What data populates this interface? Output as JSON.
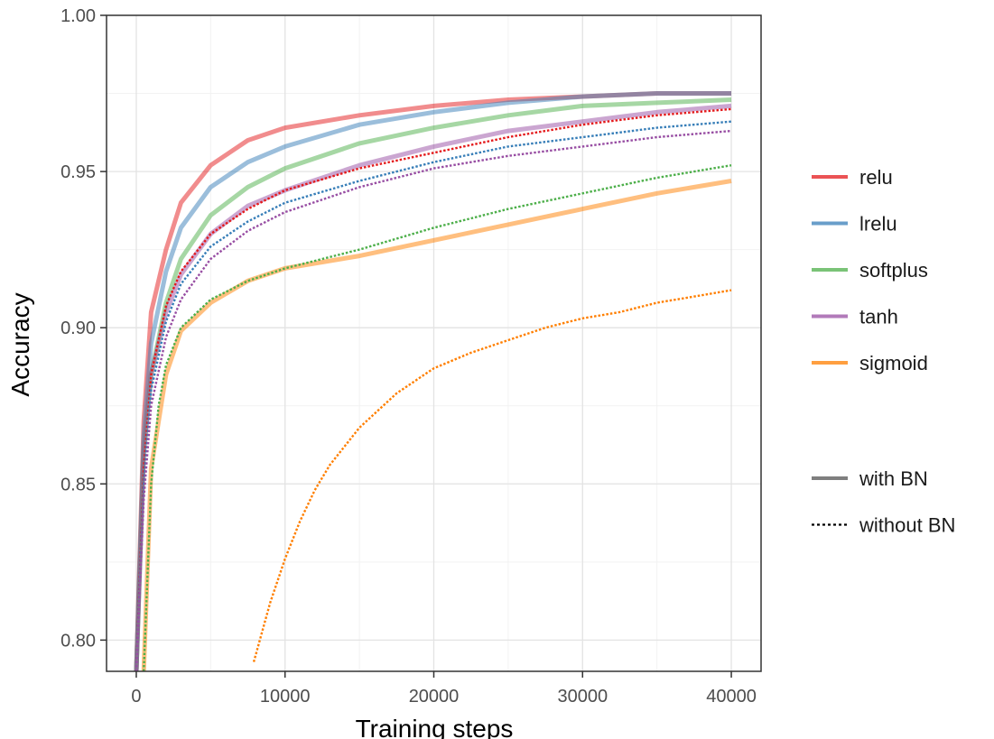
{
  "chart_data": {
    "type": "line",
    "xlabel": "Training steps",
    "ylabel": "Accuracy",
    "xlim": [
      -2000,
      42000
    ],
    "ylim": [
      0.79,
      1.0
    ],
    "xticks": [
      0,
      10000,
      20000,
      30000,
      40000
    ],
    "xtick_labels": [
      "0",
      "10000",
      "20000",
      "30000",
      "40000"
    ],
    "yticks": [
      0.8,
      0.85,
      0.9,
      0.95,
      1.0
    ],
    "ytick_labels": [
      "0.80",
      "0.85",
      "0.90",
      "0.95",
      "1.00"
    ],
    "grid": true,
    "legend_position": "right",
    "legend": {
      "activations": [
        {
          "name": "relu",
          "color": "#e41a1c"
        },
        {
          "name": "lrelu",
          "color": "#377eb8"
        },
        {
          "name": "softplus",
          "color": "#4daf4a"
        },
        {
          "name": "tanh",
          "color": "#984ea3"
        },
        {
          "name": "sigmoid",
          "color": "#ff7f00"
        }
      ],
      "styles": [
        {
          "name": "with BN",
          "dash": "solid",
          "color": "#7f7f7f"
        },
        {
          "name": "without BN",
          "dash": "dotted",
          "color": "#000000"
        }
      ]
    },
    "series": [
      {
        "name": "relu",
        "bn": "with BN",
        "color": "#e41a1c",
        "x": [
          0,
          500,
          1000,
          2000,
          3000,
          5000,
          7500,
          10000,
          15000,
          20000,
          25000,
          30000,
          35000,
          40000
        ],
        "y": [
          0.79,
          0.87,
          0.905,
          0.925,
          0.94,
          0.952,
          0.96,
          0.964,
          0.968,
          0.971,
          0.973,
          0.974,
          0.975,
          0.975
        ]
      },
      {
        "name": "lrelu",
        "bn": "with BN",
        "color": "#377eb8",
        "x": [
          0,
          500,
          1000,
          2000,
          3000,
          5000,
          7500,
          10000,
          15000,
          20000,
          25000,
          30000,
          35000,
          40000
        ],
        "y": [
          0.79,
          0.865,
          0.895,
          0.918,
          0.932,
          0.945,
          0.953,
          0.958,
          0.965,
          0.969,
          0.972,
          0.974,
          0.975,
          0.975
        ]
      },
      {
        "name": "softplus",
        "bn": "with BN",
        "color": "#4daf4a",
        "x": [
          0,
          500,
          1000,
          2000,
          3000,
          5000,
          7500,
          10000,
          15000,
          20000,
          25000,
          30000,
          35000,
          40000
        ],
        "y": [
          0.79,
          0.86,
          0.885,
          0.908,
          0.922,
          0.936,
          0.945,
          0.951,
          0.959,
          0.964,
          0.968,
          0.971,
          0.972,
          0.973
        ]
      },
      {
        "name": "tanh",
        "bn": "with BN",
        "color": "#984ea3",
        "x": [
          0,
          500,
          1000,
          2000,
          3000,
          5000,
          7500,
          10000,
          15000,
          20000,
          25000,
          30000,
          35000,
          40000
        ],
        "y": [
          0.79,
          0.86,
          0.885,
          0.905,
          0.917,
          0.93,
          0.939,
          0.944,
          0.952,
          0.958,
          0.963,
          0.966,
          0.969,
          0.971
        ]
      },
      {
        "name": "sigmoid",
        "bn": "with BN",
        "color": "#ff7f00",
        "x": [
          500,
          1000,
          2000,
          3000,
          5000,
          7500,
          10000,
          15000,
          20000,
          25000,
          30000,
          35000,
          40000
        ],
        "y": [
          0.79,
          0.855,
          0.885,
          0.899,
          0.908,
          0.915,
          0.919,
          0.923,
          0.928,
          0.933,
          0.938,
          0.943,
          0.947
        ]
      },
      {
        "name": "relu",
        "bn": "without BN",
        "color": "#e41a1c",
        "x": [
          0,
          500,
          1000,
          2000,
          3000,
          5000,
          7500,
          10000,
          15000,
          20000,
          25000,
          30000,
          35000,
          40000
        ],
        "y": [
          0.79,
          0.855,
          0.885,
          0.907,
          0.918,
          0.93,
          0.938,
          0.944,
          0.951,
          0.956,
          0.961,
          0.965,
          0.968,
          0.97
        ]
      },
      {
        "name": "lrelu",
        "bn": "without BN",
        "color": "#377eb8",
        "x": [
          0,
          500,
          1000,
          2000,
          3000,
          5000,
          7500,
          10000,
          15000,
          20000,
          25000,
          30000,
          35000,
          40000
        ],
        "y": [
          0.79,
          0.85,
          0.88,
          0.902,
          0.914,
          0.926,
          0.934,
          0.94,
          0.947,
          0.953,
          0.958,
          0.961,
          0.964,
          0.966
        ]
      },
      {
        "name": "softplus",
        "bn": "without BN",
        "color": "#4daf4a",
        "x": [
          500,
          1000,
          1500,
          2000,
          3000,
          5000,
          7500,
          10000,
          15000,
          20000,
          25000,
          30000,
          35000,
          40000
        ],
        "y": [
          0.79,
          0.85,
          0.875,
          0.888,
          0.9,
          0.909,
          0.915,
          0.919,
          0.925,
          0.932,
          0.938,
          0.943,
          0.948,
          0.952
        ]
      },
      {
        "name": "tanh",
        "bn": "without BN",
        "color": "#984ea3",
        "x": [
          0,
          500,
          1000,
          2000,
          3000,
          5000,
          7500,
          10000,
          15000,
          20000,
          25000,
          30000,
          35000,
          40000
        ],
        "y": [
          0.79,
          0.845,
          0.875,
          0.897,
          0.909,
          0.922,
          0.931,
          0.937,
          0.945,
          0.951,
          0.955,
          0.958,
          0.961,
          0.963
        ]
      },
      {
        "name": "sigmoid",
        "bn": "without BN",
        "color": "#ff7f00",
        "x": [
          7900,
          9000,
          10000,
          11000,
          12000,
          13000,
          15000,
          17500,
          20000,
          22500,
          25000,
          27500,
          30000,
          32500,
          35000,
          37500,
          40000
        ],
        "y": [
          0.793,
          0.812,
          0.826,
          0.838,
          0.848,
          0.856,
          0.868,
          0.879,
          0.887,
          0.892,
          0.896,
          0.9,
          0.903,
          0.905,
          0.908,
          0.91,
          0.912
        ]
      }
    ]
  }
}
